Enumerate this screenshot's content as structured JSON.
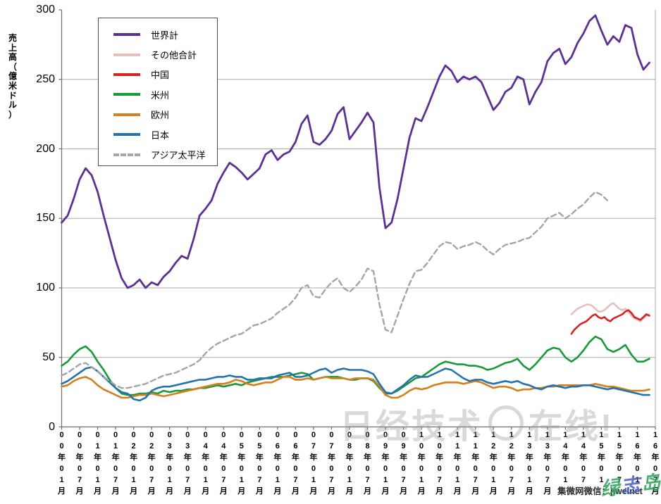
{
  "watermarks": {
    "center_left": "日经技术",
    "center_right": "在线!",
    "bottom_right": "集微网微信：jiweinet",
    "signature": "绿志岛"
  },
  "chart_data": {
    "type": "line",
    "title": "",
    "ylabel": "売上高（億米ドル）",
    "xlabel": "",
    "ylim": [
      0,
      300
    ],
    "y_ticks": [
      0,
      50,
      100,
      150,
      200,
      250,
      300
    ],
    "grid": "horizontal",
    "legend_position": "top-left-box",
    "x_tick_step_months": 6,
    "x_tick_labels": [
      "00年01月",
      "00年07月",
      "01年01月",
      "01年07月",
      "02年01月",
      "02年07月",
      "03年01月",
      "03年07月",
      "04年01月",
      "04年07月",
      "05年01月",
      "05年07月",
      "06年01月",
      "06年07月",
      "07年01月",
      "07年07月",
      "08年01月",
      "08年07月",
      "09年01月",
      "09年07月",
      "10年01月",
      "10年07月",
      "11年01月",
      "11年07月",
      "12年01月",
      "12年07月",
      "13年01月",
      "13年07月",
      "14年01月",
      "14年07月",
      "15年01月",
      "15年07月",
      "16年01月",
      "16年07月"
    ],
    "series": [
      {
        "name": "世界計",
        "color": "#5C3192",
        "dash": false,
        "width": 2.8,
        "start": "2000-01",
        "step_months": 2,
        "values": [
          147,
          152,
          164,
          178,
          186,
          181,
          169,
          152,
          136,
          120,
          107,
          100,
          102,
          106,
          100,
          104,
          102,
          108,
          112,
          118,
          123,
          121,
          135,
          152,
          157,
          163,
          175,
          183,
          190,
          187,
          183,
          178,
          182,
          186,
          196,
          199,
          192,
          196,
          198,
          205,
          218,
          224,
          205,
          203,
          207,
          213,
          225,
          230,
          207,
          213,
          219,
          226,
          219,
          172,
          143,
          147,
          164,
          186,
          208,
          222,
          220,
          230,
          241,
          252,
          260,
          256,
          248,
          252,
          250,
          252,
          248,
          238,
          228,
          233,
          241,
          244,
          252,
          250,
          232,
          241,
          248,
          263,
          269,
          272,
          261,
          266,
          276,
          283,
          292,
          296,
          285,
          275,
          281,
          277,
          289,
          287,
          268,
          257,
          262
        ]
      },
      {
        "name": "その他合計",
        "color": "#E5C1BE",
        "dash": false,
        "width": 2.6,
        "start": "2014-03",
        "step_months": 1,
        "values": [
          81,
          83,
          85,
          86,
          87,
          88,
          88,
          87,
          85,
          83,
          83,
          84,
          86,
          88,
          89,
          87,
          85,
          84,
          85,
          83,
          80,
          78,
          77,
          76,
          78,
          80,
          81
        ]
      },
      {
        "name": "中国",
        "color": "#D42323",
        "dash": false,
        "width": 2.6,
        "start": "2014-03",
        "step_months": 1,
        "values": [
          67,
          70,
          72,
          74,
          75,
          76,
          78,
          80,
          81,
          79,
          78,
          79,
          77,
          76,
          78,
          79,
          80,
          81,
          83,
          84,
          82,
          79,
          78,
          77,
          79,
          81,
          80
        ]
      },
      {
        "name": "米州",
        "color": "#189A38",
        "dash": false,
        "width": 2.6,
        "start": "2000-01",
        "step_months": 2,
        "values": [
          44,
          47,
          52,
          56,
          58,
          54,
          47,
          41,
          34,
          28,
          24,
          23,
          23,
          24,
          24,
          25,
          24,
          26,
          25,
          26,
          26,
          27,
          27,
          28,
          28,
          29,
          30,
          29,
          30,
          31,
          30,
          32,
          33,
          34,
          35,
          36,
          36,
          36,
          37,
          38,
          39,
          38,
          34,
          35,
          36,
          36,
          36,
          35,
          34,
          34,
          35,
          35,
          33,
          28,
          24,
          24,
          26,
          29,
          32,
          35,
          36,
          39,
          42,
          45,
          47,
          46,
          45,
          45,
          44,
          44,
          43,
          41,
          42,
          44,
          46,
          47,
          49,
          44,
          41,
          45,
          50,
          55,
          57,
          56,
          50,
          47,
          50,
          55,
          61,
          65,
          63,
          56,
          54,
          56,
          59,
          52,
          47,
          47,
          49
        ]
      },
      {
        "name": "欧州",
        "color": "#D5801F",
        "dash": false,
        "width": 2.6,
        "start": "2000-01",
        "step_months": 2,
        "values": [
          29,
          30,
          33,
          35,
          36,
          34,
          30,
          27,
          25,
          23,
          21,
          21,
          22,
          23,
          23,
          24,
          23,
          22,
          23,
          24,
          25,
          26,
          27,
          28,
          29,
          30,
          31,
          31,
          32,
          34,
          33,
          31,
          30,
          31,
          32,
          32,
          34,
          36,
          36,
          34,
          34,
          35,
          34,
          35,
          36,
          35,
          35,
          35,
          34,
          35,
          35,
          35,
          34,
          29,
          23,
          21,
          21,
          23,
          26,
          28,
          27,
          28,
          30,
          31,
          32,
          32,
          32,
          31,
          32,
          33,
          32,
          30,
          28,
          29,
          29,
          28,
          26,
          27,
          27,
          28,
          28,
          29,
          29,
          30,
          30,
          30,
          30,
          30,
          30,
          31,
          30,
          29,
          29,
          28,
          27,
          26,
          26,
          26,
          27
        ]
      },
      {
        "name": "日本",
        "color": "#2273AE",
        "dash": false,
        "width": 2.6,
        "start": "2000-01",
        "step_months": 2,
        "values": [
          31,
          33,
          36,
          39,
          42,
          43,
          40,
          36,
          32,
          28,
          25,
          24,
          20,
          19,
          21,
          26,
          28,
          29,
          29,
          30,
          31,
          32,
          33,
          34,
          34,
          35,
          36,
          36,
          37,
          36,
          36,
          34,
          34,
          35,
          35,
          35,
          37,
          38,
          39,
          36,
          36,
          37,
          39,
          41,
          42,
          39,
          41,
          42,
          41,
          41,
          41,
          40,
          38,
          31,
          25,
          24,
          27,
          30,
          34,
          37,
          36,
          36,
          38,
          40,
          42,
          41,
          38,
          35,
          33,
          34,
          34,
          32,
          31,
          32,
          33,
          32,
          33,
          31,
          30,
          28,
          27,
          29,
          30,
          29,
          28,
          29,
          29,
          30,
          30,
          29,
          28,
          27,
          28,
          27,
          26,
          25,
          24,
          23,
          23
        ]
      },
      {
        "name": "アジア太平洋",
        "color": "#A5A5A5",
        "dash": true,
        "width": 2.4,
        "start": "2000-01",
        "step_months": 2,
        "values": [
          37,
          39,
          42,
          45,
          46,
          43,
          40,
          36,
          33,
          30,
          28,
          28,
          29,
          30,
          31,
          33,
          35,
          37,
          38,
          39,
          41,
          43,
          45,
          48,
          53,
          57,
          60,
          62,
          64,
          66,
          67,
          70,
          73,
          74,
          76,
          78,
          82,
          85,
          88,
          93,
          100,
          102,
          94,
          93,
          99,
          104,
          107,
          100,
          97,
          101,
          106,
          114,
          112,
          88,
          70,
          68,
          80,
          92,
          103,
          112,
          113,
          118,
          124,
          130,
          133,
          132,
          128,
          130,
          131,
          133,
          131,
          127,
          124,
          128,
          131,
          132,
          133,
          135,
          136,
          140,
          144,
          150,
          152,
          154,
          150,
          153,
          157,
          160,
          165,
          169,
          167,
          163
        ]
      }
    ]
  }
}
